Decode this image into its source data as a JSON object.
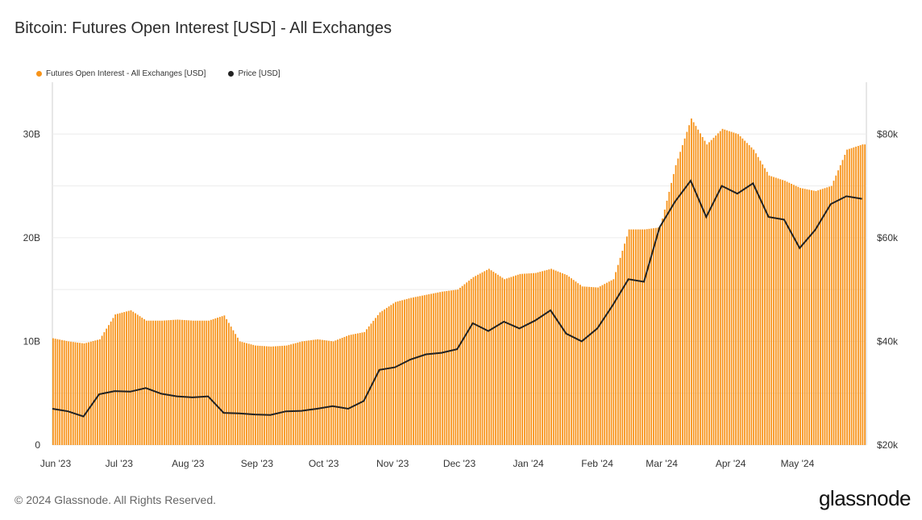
{
  "title": "Bitcoin: Futures Open Interest [USD] - All Exchanges",
  "footer": "© 2024 Glassnode. All Rights Reserved.",
  "logo": "glassnode",
  "legend": [
    {
      "label": "Futures Open Interest - All Exchanges [USD]",
      "color": "#f7931a"
    },
    {
      "label": "Price [USD]",
      "color": "#222222"
    }
  ],
  "colors": {
    "bar": "#f7931a",
    "price": "#222222",
    "grid": "#ececec"
  },
  "chart_data": {
    "type": "bar",
    "title": "Bitcoin: Futures Open Interest [USD] - All Exchanges",
    "x_tick_labels": [
      "Jun '23",
      "Jul '23",
      "Aug '23",
      "Sep '23",
      "Oct '23",
      "Nov '23",
      "Dec '23",
      "Jan '24",
      "Feb '24",
      "Mar '24",
      "Apr '24",
      "May '24"
    ],
    "y_left": {
      "ticks": [
        "0",
        "10B",
        "20B",
        "30B"
      ],
      "tick_values": [
        0,
        10,
        20,
        30
      ],
      "range": [
        0,
        35
      ],
      "unit": "B USD"
    },
    "y_right": {
      "ticks": [
        "$20k",
        "$40k",
        "$60k",
        "$80k"
      ],
      "tick_values": [
        20000,
        40000,
        60000,
        80000
      ],
      "range": [
        20000,
        90000
      ]
    },
    "grid": true,
    "legend_position": "top-left",
    "series": [
      {
        "name": "Futures Open Interest - All Exchanges [USD]",
        "axis": "left",
        "kind": "bar",
        "x": [
          "2023-06-01",
          "2023-06-08",
          "2023-06-15",
          "2023-06-22",
          "2023-06-29",
          "2023-07-06",
          "2023-07-13",
          "2023-07-20",
          "2023-07-27",
          "2023-08-03",
          "2023-08-10",
          "2023-08-17",
          "2023-08-24",
          "2023-08-31",
          "2023-09-07",
          "2023-09-14",
          "2023-09-21",
          "2023-09-28",
          "2023-10-05",
          "2023-10-12",
          "2023-10-19",
          "2023-10-26",
          "2023-11-02",
          "2023-11-09",
          "2023-11-16",
          "2023-11-23",
          "2023-11-30",
          "2023-12-07",
          "2023-12-14",
          "2023-12-21",
          "2023-12-28",
          "2024-01-04",
          "2024-01-11",
          "2024-01-18",
          "2024-01-25",
          "2024-02-01",
          "2024-02-08",
          "2024-02-15",
          "2024-02-22",
          "2024-02-29",
          "2024-03-07",
          "2024-03-14",
          "2024-03-21",
          "2024-03-28",
          "2024-04-04",
          "2024-04-11",
          "2024-04-18",
          "2024-04-25",
          "2024-05-02",
          "2024-05-09",
          "2024-05-16",
          "2024-05-23",
          "2024-05-30"
        ],
        "values": [
          10.3,
          10.0,
          9.8,
          10.2,
          12.6,
          13.0,
          12.0,
          12.0,
          12.1,
          12.0,
          12.0,
          12.5,
          10.0,
          9.6,
          9.5,
          9.6,
          10.0,
          10.2,
          10.0,
          10.6,
          10.9,
          12.8,
          13.8,
          14.2,
          14.5,
          14.8,
          15.0,
          16.2,
          17.0,
          16.0,
          16.5,
          16.6,
          17.0,
          16.4,
          15.3,
          15.2,
          16.0,
          20.8,
          20.8,
          21.0,
          27.0,
          31.5,
          29.0,
          30.5,
          30.0,
          28.5,
          26.0,
          25.5,
          24.8,
          24.5,
          25.0,
          28.5,
          29.0
        ]
      },
      {
        "name": "Price [USD]",
        "axis": "right",
        "kind": "line",
        "x": [
          "2023-06-01",
          "2023-06-08",
          "2023-06-15",
          "2023-06-22",
          "2023-06-29",
          "2023-07-06",
          "2023-07-13",
          "2023-07-20",
          "2023-07-27",
          "2023-08-03",
          "2023-08-10",
          "2023-08-17",
          "2023-08-24",
          "2023-08-31",
          "2023-09-07",
          "2023-09-14",
          "2023-09-21",
          "2023-09-28",
          "2023-10-05",
          "2023-10-12",
          "2023-10-19",
          "2023-10-26",
          "2023-11-02",
          "2023-11-09",
          "2023-11-16",
          "2023-11-23",
          "2023-11-30",
          "2023-12-07",
          "2023-12-14",
          "2023-12-21",
          "2023-12-28",
          "2024-01-04",
          "2024-01-11",
          "2024-01-18",
          "2024-01-25",
          "2024-02-01",
          "2024-02-08",
          "2024-02-15",
          "2024-02-22",
          "2024-02-29",
          "2024-03-07",
          "2024-03-14",
          "2024-03-21",
          "2024-03-28",
          "2024-04-04",
          "2024-04-11",
          "2024-04-18",
          "2024-04-25",
          "2024-05-02",
          "2024-05-09",
          "2024-05-16",
          "2024-05-23",
          "2024-05-30"
        ],
        "values": [
          27000,
          26500,
          25500,
          29800,
          30400,
          30300,
          31000,
          29900,
          29400,
          29200,
          29400,
          26200,
          26100,
          25900,
          25800,
          26500,
          26600,
          27000,
          27500,
          27000,
          28500,
          34500,
          35000,
          36500,
          37500,
          37800,
          38500,
          43500,
          42000,
          43800,
          42500,
          44000,
          46000,
          41500,
          40000,
          42500,
          47000,
          52000,
          51500,
          62000,
          67000,
          71000,
          64000,
          70000,
          68500,
          70500,
          64000,
          63500,
          58000,
          61500,
          66500,
          68000,
          67500
        ]
      }
    ]
  }
}
